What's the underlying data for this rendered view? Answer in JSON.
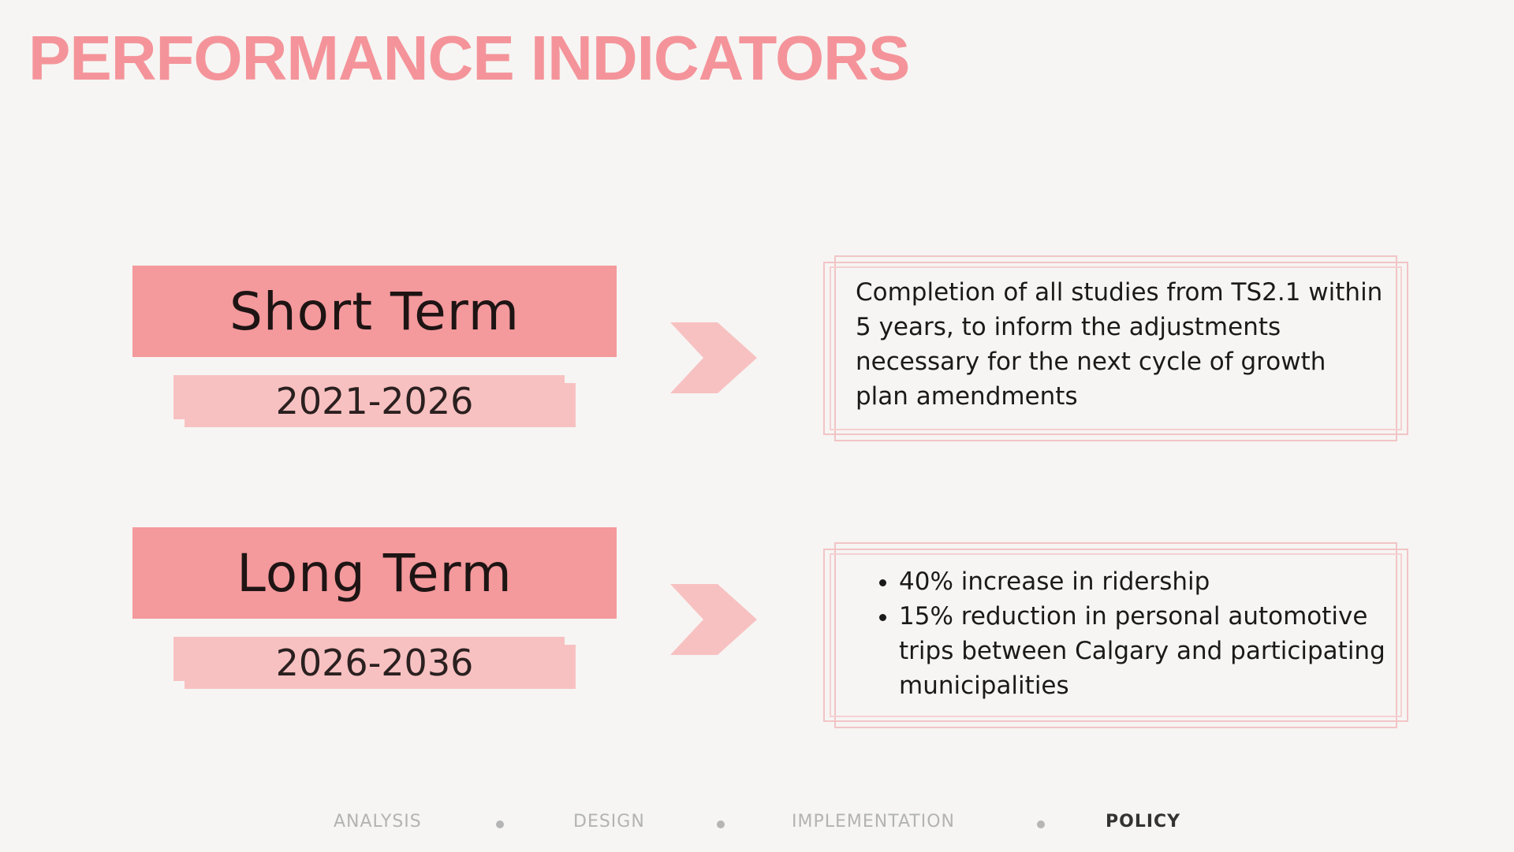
{
  "title": "PERFORMANCE INDICATORS",
  "colors": {
    "accent": "#f4949a",
    "label_bg": "#f4999c",
    "date_bg": "#f8c1c1",
    "frame": "#f2c4c6",
    "background": "#f6f5f3"
  },
  "indicators": [
    {
      "term": "Short Term",
      "period": "2021-2026",
      "description": "Completion of all studies from TS2.1 within 5 years, to inform the adjustments necessary for the next cycle of growth plan amendments",
      "bullets": []
    },
    {
      "term": "Long Term",
      "period": "2026-2036",
      "description": "",
      "bullets": [
        "40% increase in ridership",
        "15% reduction in personal automotive trips between Calgary and participating municipalities"
      ]
    }
  ],
  "arrow_icon": "chevron-right-icon",
  "nav": {
    "items": [
      "ANALYSIS",
      "DESIGN",
      "IMPLEMENTATION",
      "POLICY"
    ],
    "active": "POLICY"
  }
}
